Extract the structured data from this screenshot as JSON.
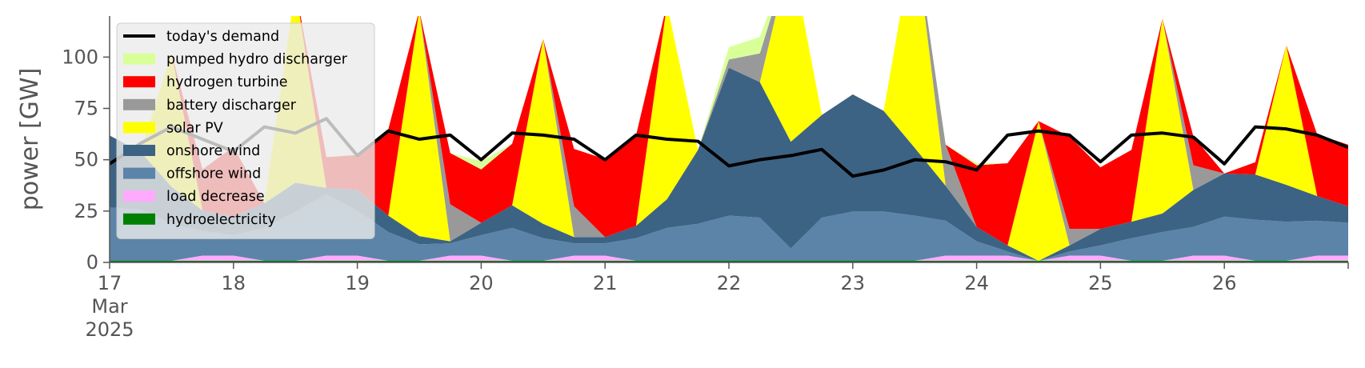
{
  "chart_data": {
    "type": "area",
    "ylabel": "power [GW]",
    "xlabel": "",
    "ylim": [
      0,
      120
    ],
    "xlim": [
      17,
      27
    ],
    "yticks": [
      0,
      25,
      50,
      75,
      100
    ],
    "xticks": [
      {
        "x": 17,
        "label": "17",
        "sub1": "Mar",
        "sub2": "2025"
      },
      {
        "x": 18,
        "label": "18"
      },
      {
        "x": 19,
        "label": "19"
      },
      {
        "x": 20,
        "label": "20"
      },
      {
        "x": 21,
        "label": "21"
      },
      {
        "x": 22,
        "label": "22"
      },
      {
        "x": 23,
        "label": "23"
      },
      {
        "x": 24,
        "label": "24"
      },
      {
        "x": 25,
        "label": "25"
      },
      {
        "x": 26,
        "label": "26"
      }
    ],
    "x_unit": "day of March 2025",
    "x": [
      17.0,
      17.25,
      17.5,
      17.75,
      18.0,
      18.25,
      18.5,
      18.75,
      19.0,
      19.25,
      19.5,
      19.75,
      20.0,
      20.25,
      20.5,
      20.75,
      21.0,
      21.25,
      21.5,
      21.75,
      22.0,
      22.25,
      22.5,
      22.75,
      23.0,
      23.25,
      23.5,
      23.75,
      24.0,
      24.25,
      24.5,
      24.75,
      25.0,
      25.25,
      25.5,
      25.75,
      26.0,
      26.25,
      26.5,
      26.75,
      27.0
    ],
    "legend": {
      "position": "upper-left"
    },
    "series": [
      {
        "name": "hydroelectricity",
        "color": "#008000",
        "values": [
          0.8,
          0.8,
          0.8,
          0.8,
          0.8,
          0.8,
          0.8,
          0.8,
          0.8,
          0.8,
          0.8,
          0.8,
          0.8,
          0.8,
          0.8,
          0.8,
          0.8,
          0.8,
          0.8,
          0.8,
          0.8,
          0.8,
          0.8,
          0.8,
          0.8,
          0.8,
          0.8,
          0.8,
          0.8,
          0.8,
          0.8,
          0.8,
          0.8,
          0.8,
          0.8,
          0.8,
          0.8,
          0.8,
          0.8,
          0.8,
          0.8
        ]
      },
      {
        "name": "load decrease",
        "color": "#ffaaff",
        "values": [
          0,
          0,
          0,
          2.5,
          2.5,
          0,
          0,
          2.5,
          2.5,
          0,
          0,
          2.5,
          2.5,
          0,
          0,
          2.5,
          2.5,
          0,
          0,
          0,
          0,
          0,
          0,
          0,
          0,
          0,
          0,
          2.5,
          2.5,
          2.5,
          0,
          2.5,
          2.5,
          0,
          0,
          2.5,
          2.5,
          0,
          0,
          2.5,
          2.5
        ]
      },
      {
        "name": "offshore wind",
        "color": "#5b84a8",
        "values": [
          26,
          25,
          18,
          12,
          10,
          16,
          24,
          30,
          22,
          14,
          8,
          6,
          10,
          16,
          11,
          6,
          6,
          11,
          16,
          18,
          22,
          21,
          6,
          21,
          24,
          24,
          22,
          17,
          7,
          2,
          0,
          2,
          5,
          11,
          14,
          14,
          19,
          20,
          19,
          17,
          16
        ]
      },
      {
        "name": "onshore wind",
        "color": "#3c6384",
        "values": [
          35,
          28,
          18,
          10,
          9,
          12,
          14,
          3,
          10,
          8,
          4,
          1,
          6,
          11,
          7,
          3,
          3,
          6,
          14,
          36,
          72,
          66,
          52,
          50,
          57,
          49,
          33,
          17,
          7,
          3,
          0,
          3,
          8,
          8,
          9,
          18,
          21,
          22,
          18,
          12,
          8
        ]
      },
      {
        "name": "solar PV",
        "color": "#ffff00",
        "values": [
          0,
          0,
          65,
          0,
          0,
          0,
          95,
          0,
          0,
          0,
          110,
          0,
          0,
          0,
          90,
          0,
          0,
          0,
          95,
          0,
          0,
          0,
          92,
          0,
          0,
          0,
          105,
          0,
          0,
          0,
          68,
          0,
          0,
          0,
          95,
          0,
          0,
          0,
          68,
          0,
          0
        ]
      },
      {
        "name": "battery discharger",
        "color": "#999999",
        "values": [
          0,
          0,
          0,
          0,
          0,
          0,
          0,
          0,
          0,
          0,
          0,
          18,
          0,
          0,
          0,
          15,
          0,
          0,
          0,
          0,
          4,
          14,
          0,
          0,
          0,
          0,
          0,
          20,
          0,
          0,
          0,
          8,
          0,
          0,
          0,
          12,
          0,
          0,
          0,
          0,
          0
        ]
      },
      {
        "name": "hydrogen turbine",
        "color": "#ff0000",
        "values": [
          0,
          0,
          0,
          20,
          34,
          0,
          0,
          15,
          17,
          42,
          0,
          25,
          26,
          30,
          0,
          28,
          38,
          44,
          0,
          0,
          0,
          0,
          0,
          0,
          0,
          0,
          0,
          0,
          30,
          40,
          0,
          45,
          30,
          35,
          0,
          14,
          0,
          6,
          0,
          30,
          30
        ]
      },
      {
        "name": "pumped hydro discharger",
        "color": "#d9ff99",
        "values": [
          0,
          0,
          0,
          0,
          0,
          0,
          0,
          0,
          0,
          0,
          0,
          0,
          4,
          0,
          0,
          0,
          0,
          0,
          0,
          0,
          6,
          8,
          0,
          0,
          0,
          0,
          0,
          0,
          1,
          0,
          0,
          0,
          0,
          0,
          0,
          0,
          0,
          0,
          0,
          0,
          0
        ]
      }
    ],
    "demand": {
      "name": "today's demand",
      "color": "#000000",
      "values": [
        48,
        58,
        66,
        60,
        54,
        66,
        63,
        70,
        52,
        64,
        60,
        62,
        50,
        63,
        62,
        60,
        50,
        62,
        60,
        59,
        47,
        50,
        52,
        55,
        42,
        45,
        50,
        49,
        45,
        62,
        64,
        62,
        49,
        62,
        63,
        61,
        48,
        66,
        65,
        62,
        56
      ]
    }
  }
}
